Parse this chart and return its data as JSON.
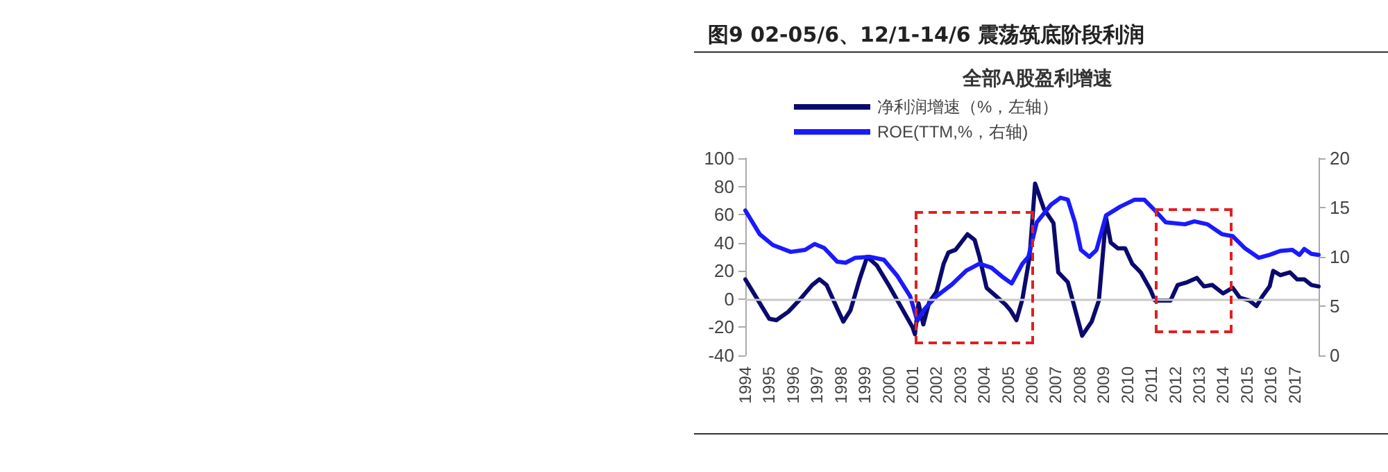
{
  "chart_data": {
    "type": "line",
    "title": "图9  02-05/6、12/1-14/6 震荡筑底阶段利润",
    "subtitle": "全部A股盈利增速",
    "xlim": [
      1994,
      2018
    ],
    "xticks": [
      1994,
      1995,
      1996,
      1997,
      1998,
      1999,
      2000,
      2001,
      2002,
      2003,
      2004,
      2005,
      2006,
      2007,
      2008,
      2009,
      2010,
      2011,
      2012,
      2013,
      2014,
      2015,
      2016,
      2017
    ],
    "ylim": [
      -40,
      100
    ],
    "yticks": [
      -40,
      -20,
      0,
      20,
      40,
      60,
      80,
      100
    ],
    "y2lim": [
      0,
      20
    ],
    "y2ticks": [
      0,
      5,
      10,
      15,
      20
    ],
    "legend": "top left",
    "grid": false,
    "marker": "none",
    "line_style": "solid",
    "ref_lines": [
      {
        "axis": "y",
        "value": 0,
        "color": "#c8c8c8"
      }
    ],
    "series": [
      {
        "name": "净利润增速（%，左轴）",
        "color": "#0a0a6e",
        "x": [
          1994,
          1994.5,
          1995,
          1995.3,
          1995.8,
          1996.3,
          1996.8,
          1997.1,
          1997.4,
          1997.8,
          1998.1,
          1998.4,
          1998.8,
          1999.1,
          1999.5,
          2000,
          2000.5,
          2001,
          2001.1,
          2001.25,
          2001.45,
          2001.7,
          2002,
          2002.3,
          2002.5,
          2002.8,
          2003.3,
          2003.6,
          2003.8,
          2004.1,
          2004.5,
          2004.9,
          2005.1,
          2005.35,
          2005.6,
          2005.9,
          2006.13,
          2006.5,
          2006.9,
          2007.1,
          2007.5,
          2007.8,
          2008.1,
          2008.5,
          2008.8,
          2009.1,
          2009.3,
          2009.6,
          2009.9,
          2010.2,
          2010.55,
          2010.95,
          2011.15,
          2011.8,
          2012.1,
          2012.5,
          2012.9,
          2013.2,
          2013.55,
          2014,
          2014.4,
          2014.7,
          2015.1,
          2015.4,
          2015.65,
          2015.95,
          2016.1,
          2016.4,
          2016.8,
          2017.1,
          2017.4,
          2017.7,
          2018
        ],
        "values": [
          14,
          0,
          -14,
          -15,
          -9,
          0,
          10,
          14,
          10,
          -5,
          -16,
          -8,
          15,
          30,
          24,
          10,
          -5,
          -20,
          -25,
          -3,
          -18,
          -2,
          5,
          25,
          33,
          35,
          46,
          42,
          30,
          8,
          2,
          -4,
          -8,
          -15,
          0,
          30,
          82,
          64,
          54,
          19,
          12,
          -7,
          -26,
          -16,
          -1,
          58,
          40,
          36,
          36,
          25,
          19,
          7,
          -1,
          -1,
          10,
          12,
          15,
          9,
          10,
          4,
          8,
          1,
          -1,
          -5,
          2,
          9,
          20,
          17,
          19,
          14,
          14,
          10,
          9
        ]
      },
      {
        "name": "ROE(TTM,%，右轴)",
        "color": "#1a1aff",
        "axis": "y2",
        "x": [
          1994,
          1994.6,
          1995.15,
          1995.9,
          1996.5,
          1996.9,
          1997.3,
          1997.85,
          1998.2,
          1998.6,
          1999.2,
          1999.8,
          2000.35,
          2000.9,
          2001.2,
          2001.5,
          2002,
          2002.65,
          2003.25,
          2003.8,
          2004.3,
          2004.8,
          2005.15,
          2005.6,
          2005.85,
          2006.2,
          2006.8,
          2007.2,
          2007.5,
          2007.8,
          2008.05,
          2008.4,
          2008.7,
          2009.1,
          2009.7,
          2010.3,
          2010.7,
          2011.15,
          2011.6,
          2012.4,
          2012.8,
          2013.35,
          2013.95,
          2014.4,
          2014.9,
          2015.5,
          2015.95,
          2016.4,
          2016.9,
          2017.2,
          2017.4,
          2017.7,
          2018
        ],
        "values": [
          14.7,
          12.3,
          11.2,
          10.5,
          10.7,
          11.3,
          10.9,
          9.5,
          9.4,
          9.9,
          10,
          9.7,
          8.1,
          6,
          3.5,
          4.7,
          6,
          7.2,
          8.6,
          9.3,
          8.9,
          7.9,
          7.3,
          9.3,
          10,
          13.5,
          15.3,
          16,
          15.8,
          13.5,
          10.7,
          10,
          10.7,
          14.2,
          15.1,
          15.8,
          15.8,
          14.7,
          13.5,
          13.3,
          13.6,
          13.3,
          12.3,
          12.1,
          10.9,
          9.9,
          10.2,
          10.6,
          10.7,
          10.2,
          10.8,
          10.3,
          10.2
        ]
      }
    ]
  }
}
